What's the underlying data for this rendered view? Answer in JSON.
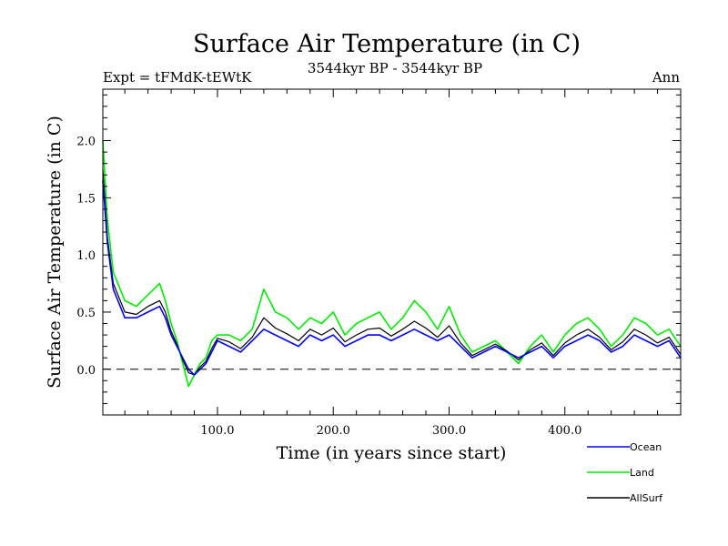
{
  "chart_data": {
    "type": "line",
    "title": "Surface Air Temperature (in C)",
    "subtitle_left": "Expt = tFMdK-tEWtK",
    "subtitle_center": "3544kyr BP - 3544kyr BP",
    "subtitle_right": "Ann",
    "xlabel": "Time (in years since start)",
    "ylabel": "Surface Air Temperature (in C)",
    "xlim": [
      1,
      500
    ],
    "ylim": [
      -0.4,
      2.45
    ],
    "x_ticks": [
      "100.0",
      "200.0",
      "300.0",
      "400.0"
    ],
    "x_tick_values": [
      100,
      200,
      300,
      400
    ],
    "y_ticks": [
      "0.0",
      "0.5",
      "1.0",
      "1.5",
      "2.0"
    ],
    "y_tick_values": [
      0.0,
      0.5,
      1.0,
      1.5,
      2.0
    ],
    "reference_line": 0.0,
    "x": [
      1,
      5,
      10,
      20,
      30,
      40,
      50,
      55,
      60,
      65,
      70,
      75,
      80,
      85,
      90,
      95,
      100,
      110,
      120,
      130,
      140,
      150,
      160,
      170,
      180,
      190,
      200,
      210,
      220,
      230,
      240,
      250,
      260,
      270,
      280,
      290,
      300,
      310,
      320,
      330,
      340,
      350,
      360,
      370,
      380,
      390,
      400,
      410,
      420,
      430,
      440,
      450,
      460,
      470,
      480,
      490,
      500
    ],
    "series": [
      {
        "name": "Ocean",
        "color": "#0000ff",
        "values": [
          1.65,
          1.1,
          0.7,
          0.45,
          0.45,
          0.5,
          0.55,
          0.45,
          0.3,
          0.2,
          0.1,
          0.0,
          -0.05,
          0.0,
          0.05,
          0.15,
          0.25,
          0.2,
          0.15,
          0.25,
          0.35,
          0.3,
          0.25,
          0.2,
          0.3,
          0.25,
          0.3,
          0.2,
          0.25,
          0.3,
          0.3,
          0.25,
          0.3,
          0.35,
          0.3,
          0.25,
          0.3,
          0.2,
          0.1,
          0.15,
          0.2,
          0.15,
          0.1,
          0.15,
          0.2,
          0.1,
          0.2,
          0.25,
          0.3,
          0.25,
          0.15,
          0.2,
          0.3,
          0.25,
          0.2,
          0.25,
          0.1
        ]
      },
      {
        "name": "Land",
        "color": "#00ee00",
        "values": [
          2.0,
          1.3,
          0.85,
          0.6,
          0.55,
          0.65,
          0.75,
          0.6,
          0.4,
          0.25,
          0.05,
          -0.15,
          -0.05,
          0.05,
          0.1,
          0.25,
          0.3,
          0.3,
          0.25,
          0.35,
          0.7,
          0.5,
          0.45,
          0.35,
          0.45,
          0.4,
          0.5,
          0.3,
          0.4,
          0.45,
          0.5,
          0.35,
          0.45,
          0.6,
          0.5,
          0.35,
          0.55,
          0.3,
          0.15,
          0.2,
          0.25,
          0.15,
          0.05,
          0.2,
          0.3,
          0.15,
          0.3,
          0.4,
          0.45,
          0.35,
          0.2,
          0.3,
          0.45,
          0.4,
          0.3,
          0.35,
          0.2
        ]
      },
      {
        "name": "AllSurf",
        "color": "#000000",
        "values": [
          1.75,
          1.15,
          0.75,
          0.5,
          0.48,
          0.55,
          0.6,
          0.5,
          0.33,
          0.22,
          0.08,
          -0.03,
          -0.05,
          0.02,
          0.07,
          0.18,
          0.27,
          0.24,
          0.18,
          0.28,
          0.45,
          0.36,
          0.31,
          0.25,
          0.35,
          0.3,
          0.36,
          0.24,
          0.3,
          0.35,
          0.36,
          0.29,
          0.35,
          0.42,
          0.36,
          0.28,
          0.38,
          0.23,
          0.12,
          0.17,
          0.22,
          0.16,
          0.08,
          0.17,
          0.23,
          0.12,
          0.23,
          0.3,
          0.35,
          0.28,
          0.17,
          0.24,
          0.35,
          0.3,
          0.23,
          0.28,
          0.13
        ]
      }
    ],
    "legend": [
      "Ocean",
      "Land",
      "AllSurf"
    ],
    "legend_position": "bottom-right"
  }
}
